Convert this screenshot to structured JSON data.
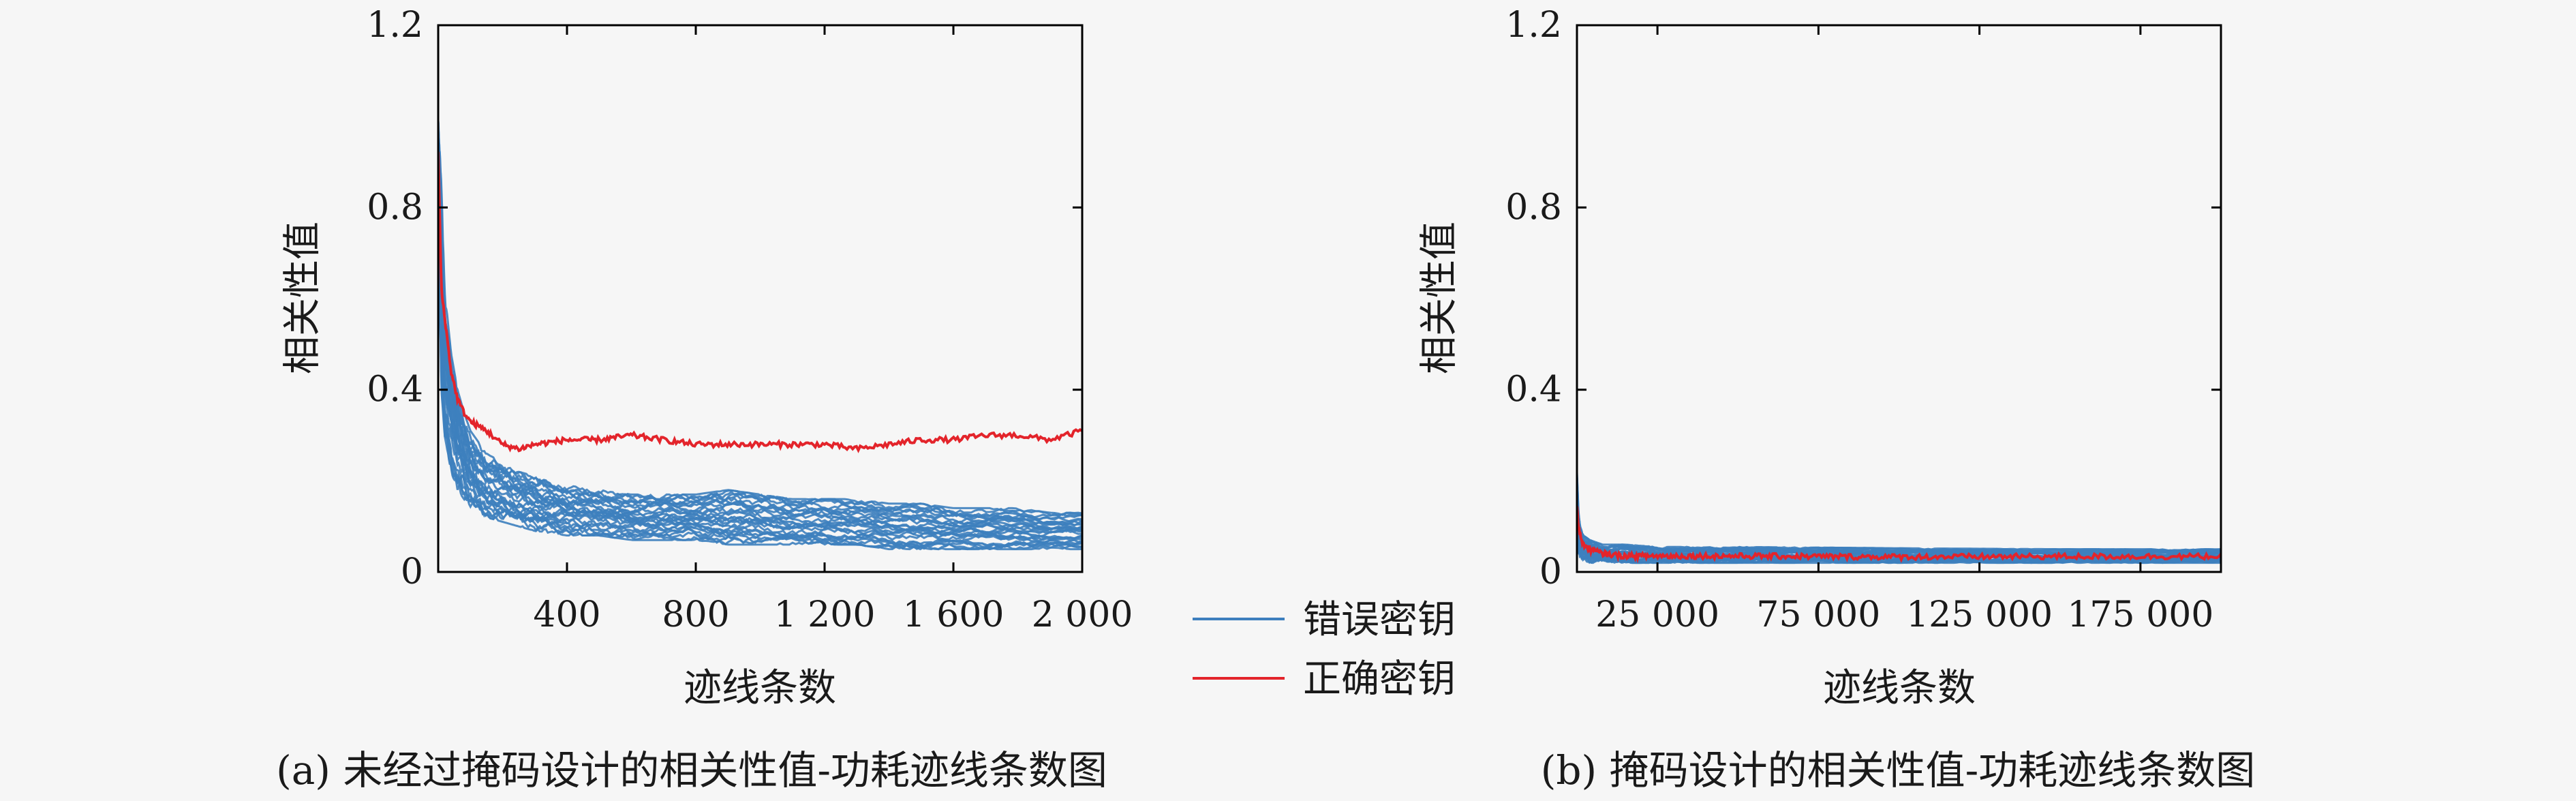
{
  "colors": {
    "wrong_key": "#3d7fbe",
    "correct_key": "#e3242b",
    "axis": "#000000",
    "background": "#f6f6f6"
  },
  "legend": [
    {
      "label": "错误密钥",
      "color": "#3d7fbe"
    },
    {
      "label": "正确密钥",
      "color": "#e3242b"
    }
  ],
  "chart_data": [
    {
      "type": "line",
      "caption": "(a) 未经过掩码设计的相关性值-功耗迹线条数图",
      "xlabel": "迹线条数",
      "ylabel": "相关性值",
      "xlim": [
        0,
        2000
      ],
      "ylim": [
        0,
        1.2
      ],
      "xticks": [
        400,
        800,
        1200,
        1600,
        2000
      ],
      "xtick_labels": [
        "400",
        "800",
        "1 200",
        "1 600",
        "2 000"
      ],
      "yticks": [
        0,
        0.4,
        0.8,
        1.2
      ],
      "ytick_labels": [
        "0",
        "0.4",
        "0.8",
        "1.2"
      ],
      "grid": false,
      "series": [
        {
          "name": "正确密钥",
          "x": [
            0,
            10,
            20,
            40,
            60,
            80,
            100,
            150,
            200,
            250,
            300,
            400,
            500,
            600,
            700,
            800,
            900,
            1000,
            1100,
            1200,
            1300,
            1400,
            1500,
            1600,
            1700,
            1800,
            1900,
            2000
          ],
          "y": [
            0.92,
            0.62,
            0.56,
            0.44,
            0.38,
            0.35,
            0.33,
            0.31,
            0.28,
            0.27,
            0.28,
            0.29,
            0.29,
            0.3,
            0.29,
            0.28,
            0.28,
            0.28,
            0.28,
            0.28,
            0.27,
            0.28,
            0.29,
            0.29,
            0.3,
            0.3,
            0.29,
            0.31
          ]
        },
        {
          "name": "错误密钥",
          "x": [
            0,
            10,
            20,
            40,
            60,
            80,
            100,
            150,
            200,
            250,
            300,
            400,
            500,
            600,
            700,
            800,
            900,
            1000,
            1100,
            1200,
            1300,
            1400,
            1500,
            1600,
            1700,
            1800,
            1900,
            2000
          ],
          "band_lower": [
            0.8,
            0.4,
            0.3,
            0.22,
            0.18,
            0.16,
            0.14,
            0.12,
            0.11,
            0.1,
            0.09,
            0.08,
            0.08,
            0.07,
            0.07,
            0.07,
            0.06,
            0.06,
            0.06,
            0.06,
            0.06,
            0.05,
            0.05,
            0.05,
            0.05,
            0.05,
            0.05,
            0.05
          ],
          "band_upper": [
            1.0,
            0.85,
            0.62,
            0.48,
            0.4,
            0.35,
            0.31,
            0.26,
            0.24,
            0.22,
            0.21,
            0.19,
            0.18,
            0.17,
            0.17,
            0.17,
            0.18,
            0.17,
            0.16,
            0.16,
            0.16,
            0.15,
            0.15,
            0.14,
            0.14,
            0.14,
            0.13,
            0.13
          ]
        }
      ]
    },
    {
      "type": "line",
      "caption": "(b) 掩码设计的相关性值-功耗迹线条数图",
      "xlabel": "迹线条数",
      "ylabel": "相关性值",
      "xlim": [
        0,
        200000
      ],
      "ylim": [
        0,
        1.2
      ],
      "xticks": [
        25000,
        75000,
        125000,
        175000
      ],
      "xtick_labels": [
        "25 000",
        "75 000",
        "125 000",
        "175 000"
      ],
      "yticks": [
        0,
        0.4,
        0.8,
        1.2
      ],
      "ytick_labels": [
        "0",
        "0.4",
        "0.8",
        "1.2"
      ],
      "grid": false,
      "series": [
        {
          "name": "正确密钥",
          "x": [
            0,
            500,
            1000,
            2000,
            4000,
            8000,
            15000,
            25000,
            50000,
            100000,
            150000,
            200000
          ],
          "y": [
            0.15,
            0.1,
            0.08,
            0.06,
            0.05,
            0.04,
            0.035,
            0.035,
            0.035,
            0.033,
            0.034,
            0.034
          ]
        },
        {
          "name": "错误密钥",
          "x": [
            0,
            500,
            1000,
            2000,
            4000,
            8000,
            15000,
            25000,
            50000,
            100000,
            150000,
            200000
          ],
          "band_lower": [
            0.06,
            0.04,
            0.03,
            0.025,
            0.02,
            0.02,
            0.02,
            0.02,
            0.02,
            0.02,
            0.02,
            0.02
          ],
          "band_upper": [
            0.22,
            0.13,
            0.1,
            0.08,
            0.07,
            0.06,
            0.06,
            0.055,
            0.055,
            0.052,
            0.05,
            0.05
          ]
        }
      ]
    }
  ]
}
